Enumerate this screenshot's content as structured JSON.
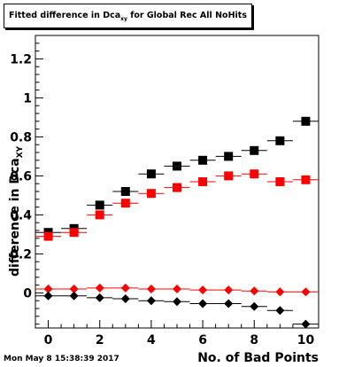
{
  "title": {
    "prefix": "Fitted difference in Dca",
    "sub": "xy",
    "suffix": " for Global Rec All NoHits"
  },
  "timestamp": "Mon May  8 15:38:39 2017",
  "chart_data": {
    "type": "scatter",
    "title": "Fitted difference in Dca_xy for Global Rec All NoHits",
    "xlabel": "No. of Bad Points",
    "ylabel": {
      "main": "difference in Dca",
      "sub": "XY"
    },
    "xlim": [
      -0.5,
      10.5
    ],
    "ylim": [
      -0.18,
      1.32
    ],
    "xticks": [
      0,
      2,
      4,
      6,
      8,
      10
    ],
    "yticks": [
      0,
      0.2,
      0.4,
      0.6,
      0.8,
      1,
      1.2
    ],
    "ytick_labels": [
      "0",
      "0.2",
      "0.4",
      "0.6",
      "0.8",
      "1",
      "1.2"
    ],
    "grid": false,
    "series": [
      {
        "marker": "square",
        "color": "#000000",
        "x": [
          0,
          1,
          2,
          3,
          4,
          5,
          6,
          7,
          8,
          9,
          10
        ],
        "y": [
          0.31,
          0.33,
          0.45,
          0.52,
          0.61,
          0.65,
          0.68,
          0.7,
          0.73,
          0.78,
          0.88
        ]
      },
      {
        "marker": "square",
        "color": "#ff0000",
        "x": [
          0,
          1,
          2,
          3,
          4,
          5,
          6,
          7,
          8,
          9,
          10
        ],
        "y": [
          0.29,
          0.31,
          0.4,
          0.46,
          0.51,
          0.54,
          0.57,
          0.6,
          0.61,
          0.57,
          0.58
        ]
      },
      {
        "marker": "diamond",
        "color": "#ff0000",
        "x": [
          0,
          1,
          2,
          3,
          4,
          5,
          6,
          7,
          8,
          9,
          10
        ],
        "y": [
          0.02,
          0.02,
          0.025,
          0.025,
          0.02,
          0.02,
          0.015,
          0.015,
          0.01,
          0.005,
          0.005
        ]
      },
      {
        "marker": "diamond",
        "color": "#000000",
        "x": [
          0,
          1,
          2,
          3,
          4,
          5,
          6,
          7,
          8,
          9,
          10
        ],
        "y": [
          -0.015,
          -0.015,
          -0.025,
          -0.03,
          -0.04,
          -0.045,
          -0.055,
          -0.055,
          -0.07,
          -0.09,
          -0.16
        ]
      }
    ]
  }
}
